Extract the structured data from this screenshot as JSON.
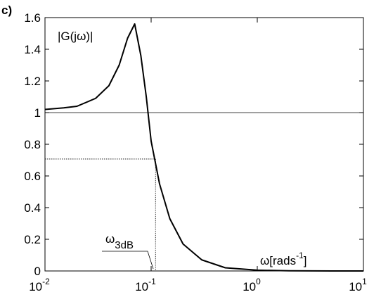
{
  "chart_data": {
    "type": "line",
    "panel_label": "c)",
    "y_label": "|G(jω)|",
    "x_label": {
      "text": "ω[rads",
      "superscript": "-1",
      "suffix": "]"
    },
    "cutoff_label": {
      "text": "ω",
      "subscript": "3dB"
    },
    "x": [
      0.01,
      0.015,
      0.02,
      0.03,
      0.04,
      0.05,
      0.06,
      0.07,
      0.08,
      0.09,
      0.1,
      0.12,
      0.15,
      0.2,
      0.3,
      0.5,
      1,
      2,
      5,
      10
    ],
    "series": [
      {
        "color": "#000000",
        "values": [
          1.02,
          1.03,
          1.04,
          1.09,
          1.17,
          1.3,
          1.47,
          1.56,
          1.36,
          1.1,
          0.82,
          0.55,
          0.33,
          0.17,
          0.07,
          0.02,
          0.005,
          0.001,
          0,
          0
        ]
      }
    ],
    "reference_y": 1,
    "cutoff": {
      "x": 0.11,
      "y": 0.707
    },
    "xscale": "log",
    "xlim": [
      0.01,
      10
    ],
    "ylim": [
      0,
      1.6
    ],
    "xticks": [
      {
        "value": 0.01,
        "label": "10",
        "exponent": "-2"
      },
      {
        "value": 0.1,
        "label": "10",
        "exponent": "-1"
      },
      {
        "value": 1,
        "label": "10",
        "exponent": "0"
      },
      {
        "value": 10,
        "label": "10",
        "exponent": "1"
      }
    ],
    "yticks": [
      0,
      0.2,
      0.4,
      0.6,
      0.8,
      1,
      1.2,
      1.4,
      1.6
    ]
  }
}
